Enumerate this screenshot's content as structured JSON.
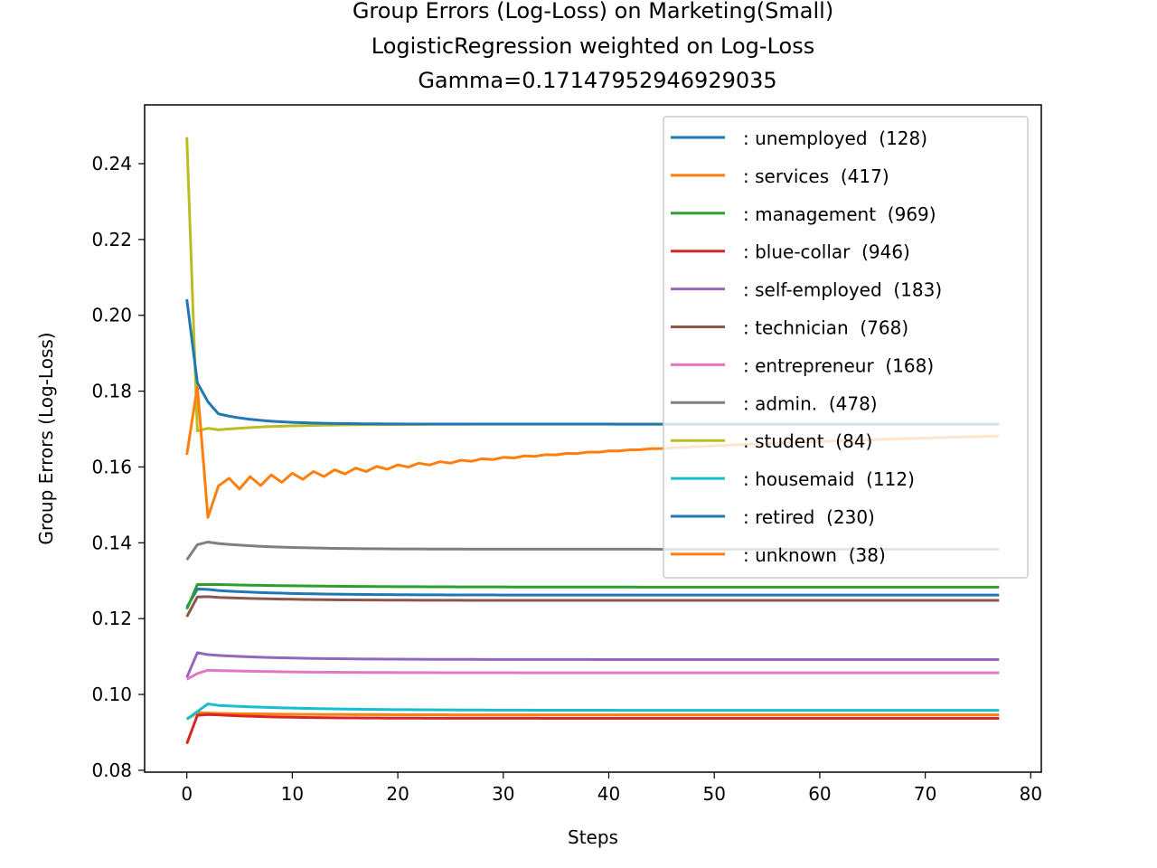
{
  "chart_data": {
    "type": "line",
    "title_lines": [
      "Group Errors (Log-Loss) on Marketing(Small)",
      "LogisticRegression weighted on Log-Loss",
      "Gamma=0.17147952946929035"
    ],
    "xlabel": "Steps",
    "ylabel": "Group Errors (Log-Loss)",
    "xlim": [
      -4,
      81
    ],
    "ylim": [
      0.0795,
      0.2555
    ],
    "xticks": [
      0,
      10,
      20,
      30,
      40,
      50,
      60,
      70,
      80
    ],
    "xtick_labels": [
      "0",
      "10",
      "20",
      "30",
      "40",
      "50",
      "60",
      "70",
      "80"
    ],
    "yticks": [
      0.08,
      0.1,
      0.12,
      0.14,
      0.16,
      0.18,
      0.2,
      0.22,
      0.24
    ],
    "ytick_labels": [
      "0.08",
      "0.10",
      "0.12",
      "0.14",
      "0.16",
      "0.18",
      "0.20",
      "0.22",
      "0.24"
    ],
    "legend_position": "upper right",
    "grid": false,
    "series": [
      {
        "name": ": unemployed  (128)",
        "color": "#1f77b4",
        "start": 0.123,
        "k": [
          0.1278,
          0.1277,
          0.1274
        ],
        "final": 0.1262,
        "tau": 7
      },
      {
        "name": ": services  (417)",
        "color": "#ff7f0e",
        "start": 0.0935,
        "k": [
          0.0952,
          0.0951,
          0.095
        ],
        "final": 0.0946,
        "tau": 8
      },
      {
        "name": ": management  (969)",
        "color": "#2ca02c",
        "start": 0.1225,
        "k": [
          0.129,
          0.129,
          0.129
        ],
        "final": 0.1283,
        "tau": 10
      },
      {
        "name": ": blue-collar  (946)",
        "color": "#d62728",
        "start": 0.087,
        "k": [
          0.0945,
          0.0947,
          0.0946
        ],
        "final": 0.0937,
        "tau": 6
      },
      {
        "name": ": self-employed  (183)",
        "color": "#9467bd",
        "start": 0.1045,
        "k": [
          0.111,
          0.1105,
          0.1103
        ],
        "final": 0.1092,
        "tau": 7
      },
      {
        "name": ": technician  (768)",
        "color": "#8c564b",
        "start": 0.1205,
        "k": [
          0.1257,
          0.1258,
          0.1256
        ],
        "final": 0.1248,
        "tau": 7
      },
      {
        "name": ": entrepreneur  (168)",
        "color": "#e377c2",
        "start": 0.104,
        "k": [
          0.1055,
          0.1064,
          0.1063
        ],
        "final": 0.1057,
        "tau": 8
      },
      {
        "name": ": admin.  (478)",
        "color": "#7f7f7f",
        "start": 0.1355,
        "k": [
          0.1395,
          0.1402,
          0.1398
        ],
        "final": 0.1383,
        "tau": 6
      },
      {
        "name": ": student  (84)",
        "color": "#bcbd22",
        "start": 0.247,
        "k": [
          0.1695,
          0.1702,
          0.1698
        ],
        "final": 0.1713,
        "tau": 6
      },
      {
        "name": ": housemaid  (112)",
        "color": "#17becf",
        "start": 0.0935,
        "k": [
          0.0955,
          0.0975,
          0.0971
        ],
        "final": 0.0958,
        "tau": 9
      },
      {
        "name": ": retired  (230)",
        "color": "#1f77b4",
        "start": 0.2042,
        "k": [
          0.1822,
          0.1772,
          0.174
        ],
        "final": 0.1713,
        "tau": 4
      },
      {
        "name": ": unknown  (38)",
        "color": "#ff7f0e",
        "start": 0.1632,
        "k": [
          0.1812,
          0.1467,
          0.155
        ],
        "final": 0.1713,
        "tau": 45,
        "zigzag": true
      }
    ],
    "x_max": 77
  }
}
